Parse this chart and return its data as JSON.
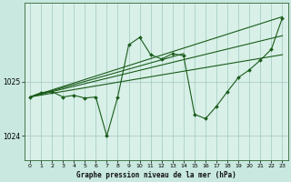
{
  "background_color": "#c8e8e0",
  "plot_bg_color": "#d8f0e8",
  "grid_color": "#a0c8c0",
  "line_color": "#1a5c1a",
  "title": "Graphe pression niveau de la mer (hPa)",
  "xlim": [
    -0.5,
    23.5
  ],
  "ylim": [
    1023.55,
    1026.45
  ],
  "yticks": [
    1024,
    1025
  ],
  "xticks": [
    0,
    1,
    2,
    3,
    4,
    5,
    6,
    7,
    8,
    9,
    10,
    11,
    12,
    13,
    14,
    15,
    16,
    17,
    18,
    19,
    20,
    21,
    22,
    23
  ],
  "zigzag": [
    1024.72,
    1024.8,
    1024.82,
    1024.72,
    1024.75,
    1024.7,
    1024.72,
    1024.0,
    1024.72,
    1025.68,
    1025.82,
    1025.5,
    1025.42,
    1025.52,
    1025.48,
    1024.4,
    1024.32,
    1024.55,
    1024.82,
    1025.08,
    1025.22,
    1025.4,
    1025.6,
    1026.18
  ],
  "straight_lines": [
    {
      "x": [
        0,
        23
      ],
      "y": [
        1024.72,
        1026.2
      ]
    },
    {
      "x": [
        0,
        23
      ],
      "y": [
        1024.72,
        1025.85
      ]
    },
    {
      "x": [
        0,
        14
      ],
      "y": [
        1024.72,
        1025.52
      ]
    },
    {
      "x": [
        0,
        23
      ],
      "y": [
        1024.72,
        1025.5
      ]
    }
  ]
}
